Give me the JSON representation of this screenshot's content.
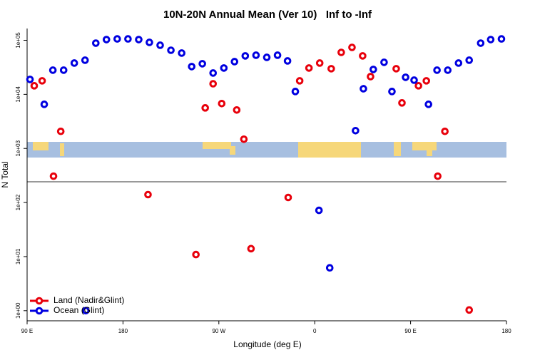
{
  "chart_data": {
    "type": "scatter",
    "title": "10N-20N Annual Mean (Ver 10)   Inf to -Inf",
    "x_label": "Longitude (deg E)",
    "y_label": "N Total",
    "log_y": true,
    "legend_position": "bottom-left",
    "xlim": [
      90,
      540
    ],
    "xticks": [
      {
        "value": 90,
        "label": "90 E"
      },
      {
        "value": 180,
        "label": "180"
      },
      {
        "value": 270,
        "label": "90 W"
      },
      {
        "value": 360,
        "label": "0"
      },
      {
        "value": 450,
        "label": "90 E"
      },
      {
        "value": 540,
        "label": "180"
      }
    ],
    "ylim": [
      0.65,
      165000
    ],
    "yticks": [
      {
        "value": 1,
        "label": "1e+00"
      },
      {
        "value": 10,
        "label": "1e+01"
      },
      {
        "value": 100,
        "label": "1e+02"
      },
      {
        "value": 1000,
        "label": "1e+03"
      },
      {
        "value": 10000,
        "label": "1e+04"
      },
      {
        "value": 100000,
        "label": "1e+05"
      }
    ],
    "series": [
      {
        "name": "Land (Nadir&Glint)",
        "color": "#e8000b",
        "x": [
          96.7,
          104.1,
          121.6,
          114.8,
          203.5,
          248.5,
          257.2,
          264.6,
          272.7,
          286.8,
          293.5,
          300.2,
          335.1,
          345.9,
          354.6,
          364.7,
          375.5,
          384.9,
          395,
          405,
          412.4,
          436.5,
          441.9,
          457.4,
          464.8,
          475.5,
          482.2,
          505
        ],
        "values": [
          14400,
          17800,
          2070,
          307,
          140,
          10.9,
          5620,
          15700,
          6750,
          5140,
          1480,
          14,
          124,
          17800,
          30700,
          37900,
          29800,
          59700,
          73800,
          51400,
          21300,
          29800,
          6950,
          14400,
          17800,
          307,
          2070,
          1.03
        ]
      },
      {
        "name": "Ocean (Glint)",
        "color": "#0000e0",
        "x": [
          92.7,
          106.1,
          114.2,
          124.3,
          134.3,
          144.4,
          145.1,
          154.5,
          164.5,
          174.6,
          184.7,
          194.8,
          204.8,
          214.9,
          225,
          235.1,
          244.5,
          254.5,
          264.6,
          274.7,
          284.7,
          294.8,
          304.9,
          315,
          325.1,
          334.5,
          341.8,
          364,
          374.1,
          398.3,
          405.7,
          415,
          425.1,
          432.5,
          445.3,
          453.3,
          466.8,
          474.8,
          484.9,
          495,
          505,
          515.8,
          525.2,
          535.3
        ],
        "values": [
          18900,
          6540,
          28000,
          28000,
          37900,
          42800,
          1,
          88500,
          103000,
          106000,
          106000,
          103000,
          91400,
          80900,
          65400,
          58000,
          32600,
          36800,
          24800,
          30700,
          40300,
          51400,
          52900,
          48300,
          52900,
          41500,
          11300,
          71.6,
          6.2,
          2130,
          12700,
          28900,
          39100,
          11300,
          20700,
          18300,
          6540,
          28000,
          28000,
          37900,
          42800,
          88500,
          103000,
          106000
        ]
      }
    ]
  }
}
